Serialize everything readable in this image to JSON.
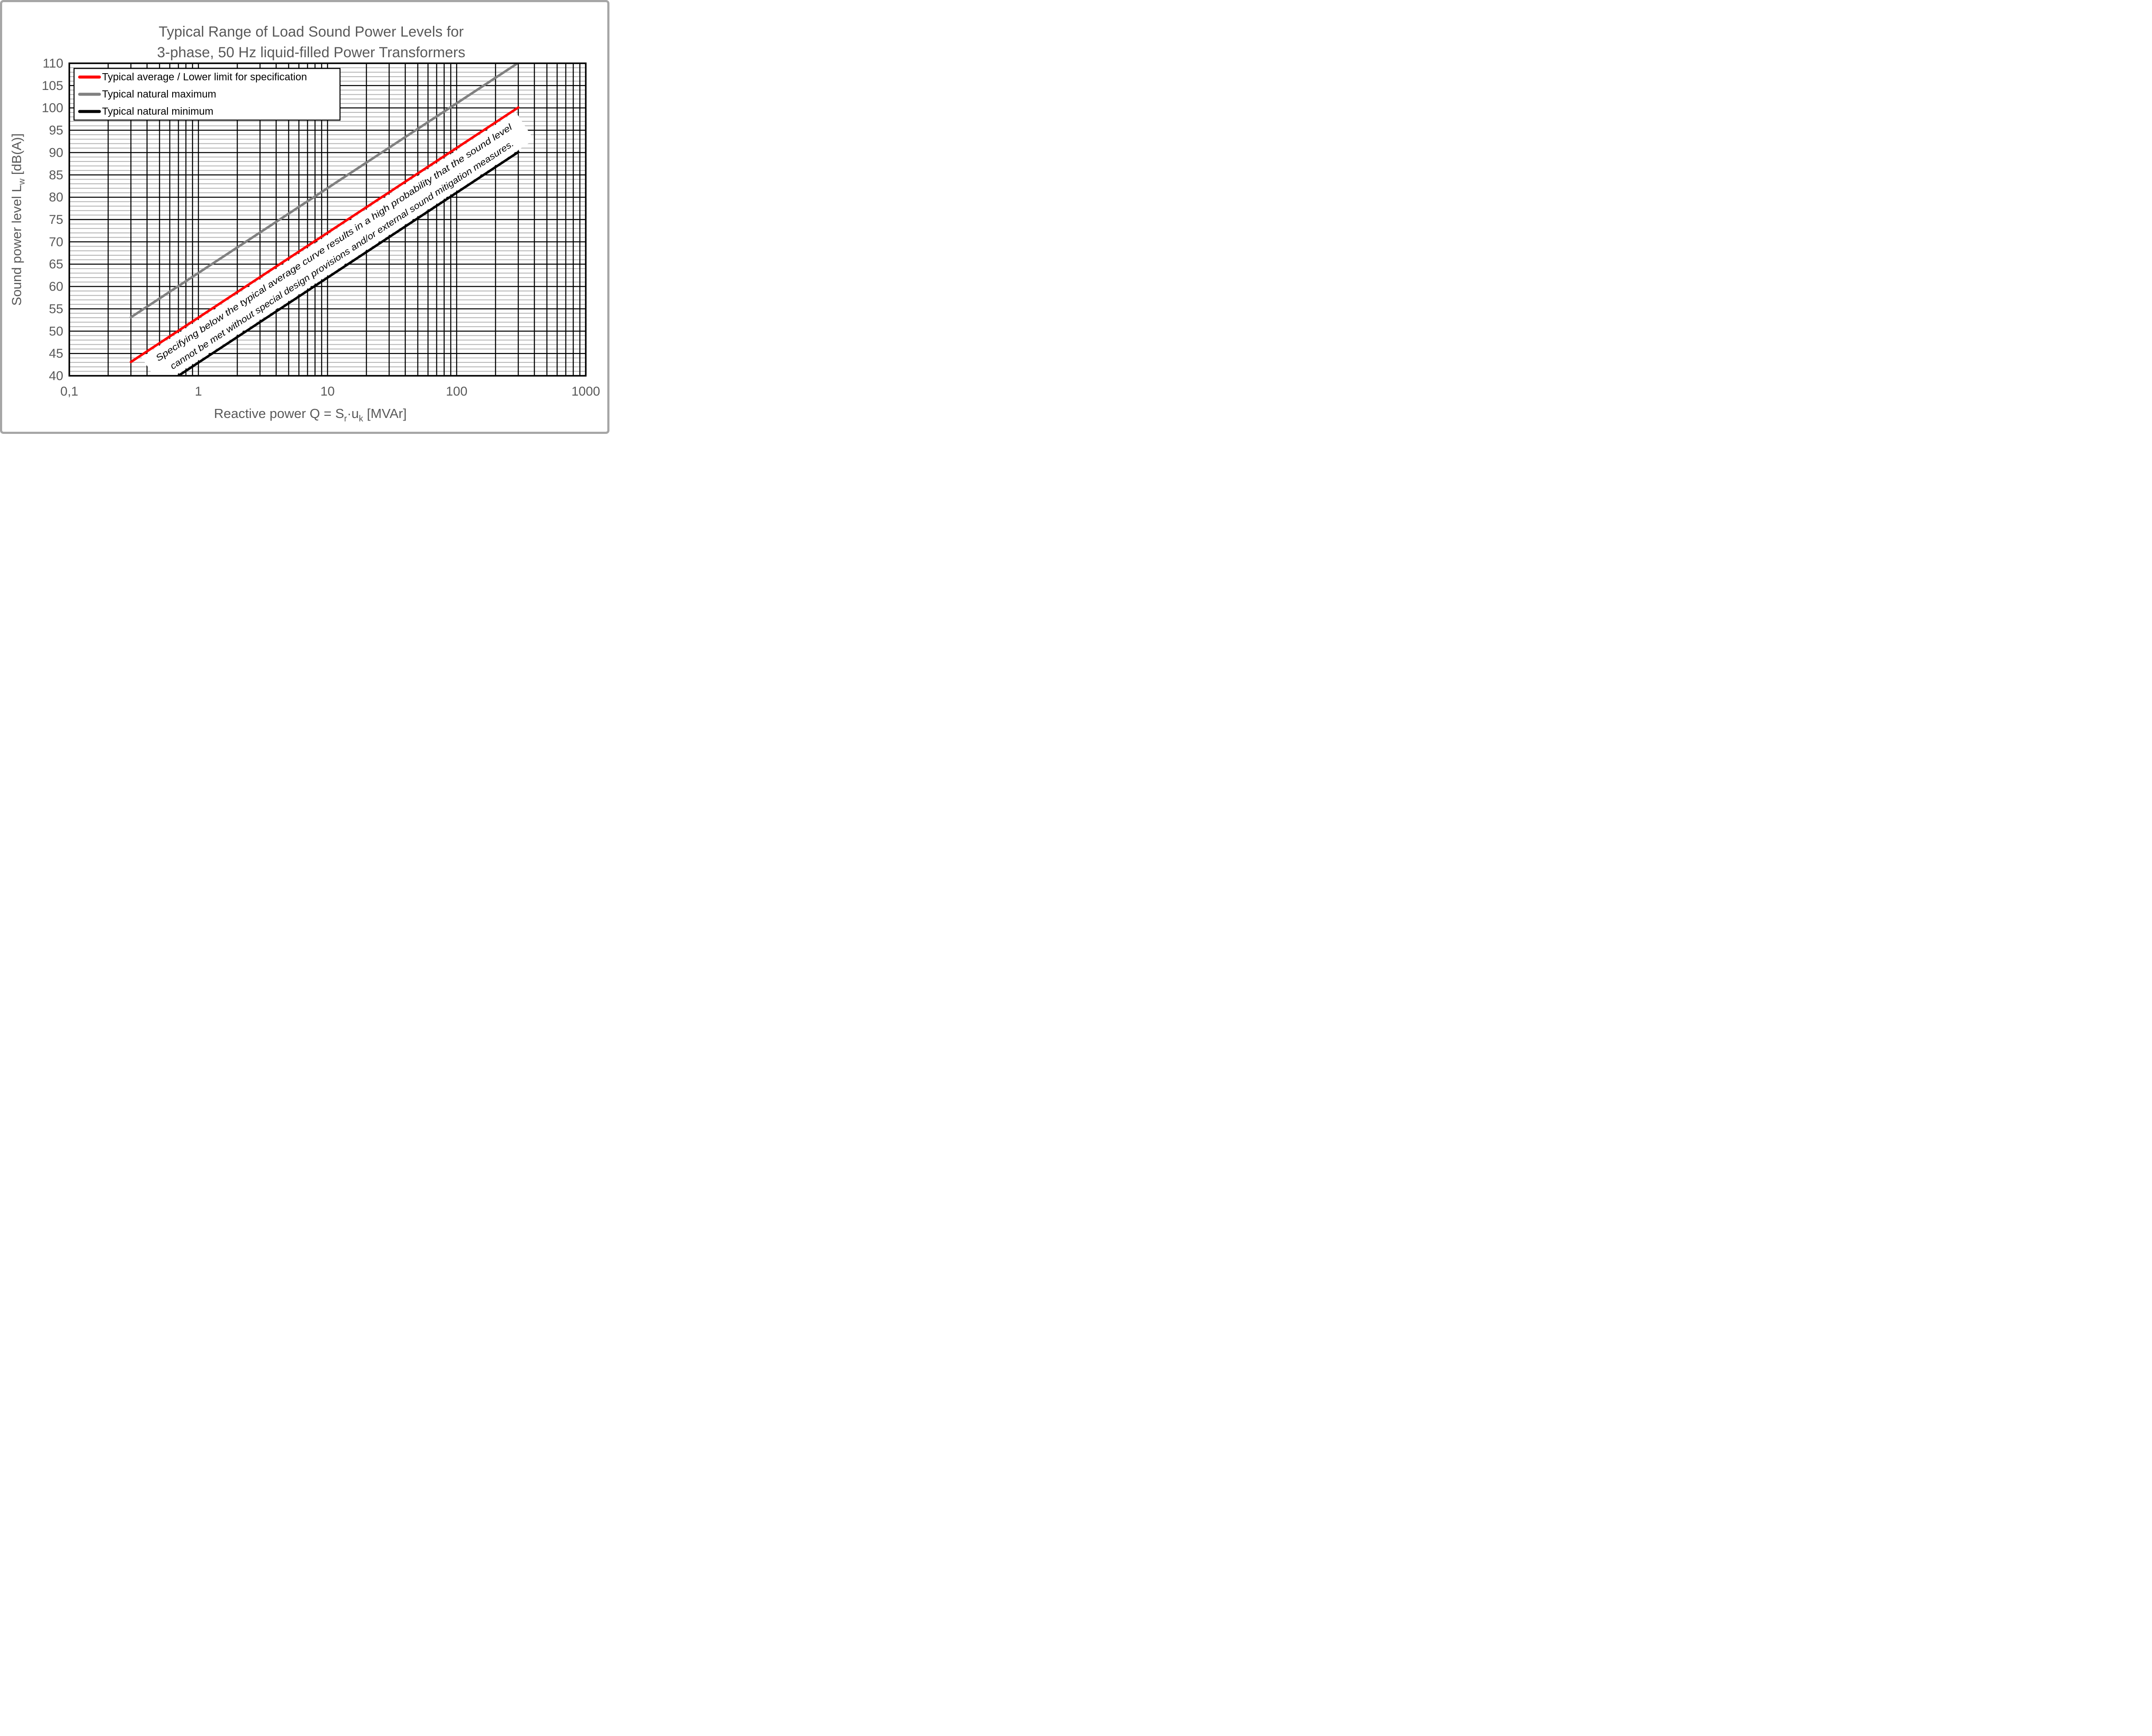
{
  "title": {
    "line1": "Typical Range of Load Sound Power Levels for",
    "line2": "3-phase, 50 Hz liquid-filled Power Transformers"
  },
  "colors": {
    "frame_border": "#A6A6A6",
    "plot_border": "#000000",
    "grid_vertical": "#000000",
    "grid_major_horizontal": "#000000",
    "grid_minor_horizontal": "#B3B3B3",
    "text": "#595959",
    "legend_text": "#000000",
    "annotation_text": "#000000",
    "series_red": "#FF0000",
    "series_gray": "#808080",
    "series_black": "#000000"
  },
  "chart_data": {
    "type": "line",
    "title": "Typical Range of Load Sound Power Levels for 3-phase, 50 Hz liquid-filled Power Transformers",
    "xlabel": "Reactive power Q = Sr·uk [MVAr]",
    "ylabel": "Sound power level Lw [dB(A)]",
    "x_axis": {
      "scale": "log",
      "min": 0.1,
      "max": 1000,
      "major_ticks": [
        0.1,
        1,
        10,
        100,
        1000
      ],
      "tick_labels": [
        "0,1",
        "1",
        "10",
        "100",
        "1000"
      ],
      "minor_multiples": [
        2,
        3,
        4,
        5,
        6,
        7,
        8,
        9
      ],
      "label_parts": [
        {
          "t": "Reactive power Q = S"
        },
        {
          "t": "r",
          "sub": true
        },
        {
          "t": "·u"
        },
        {
          "t": "k",
          "sub": true
        },
        {
          "t": " [MVAr]"
        }
      ]
    },
    "y_axis": {
      "scale": "linear",
      "min": 40,
      "max": 110,
      "major_step": 5,
      "minor_step": 1,
      "tick_labels": [
        "40",
        "45",
        "50",
        "55",
        "60",
        "65",
        "70",
        "75",
        "80",
        "85",
        "90",
        "95",
        "100",
        "105",
        "110"
      ],
      "label_parts": [
        {
          "t": "Sound power level L"
        },
        {
          "t": "w",
          "sub": true
        },
        {
          "t": " [dB(A)]"
        }
      ]
    },
    "grid": {
      "vertical": "log minor + decades, black",
      "horizontal_major": "every 5 dB, black",
      "horizontal_minor": "every 1 dB, light gray"
    },
    "slope_db_per_decade": 19,
    "series": [
      {
        "name": "Typical average / Lower limit for specification",
        "color": "#FF0000",
        "points": [
          [
            0.3,
            43.1
          ],
          [
            300,
            100.1
          ]
        ]
      },
      {
        "name": "Typical natural maximum",
        "color": "#808080",
        "points": [
          [
            0.3,
            53.1
          ],
          [
            300,
            110.1
          ]
        ]
      },
      {
        "name": "Typical natural minimum",
        "color": "#000000",
        "points": [
          [
            0.7,
            40.0
          ],
          [
            300,
            90.1
          ]
        ]
      }
    ],
    "legend": {
      "position": "top-left",
      "border": "black",
      "background": "white"
    },
    "annotation": {
      "line1": "Specifying below the typical average curve results in a high probability that the sound level",
      "line2": "cannot be met without special design provisions and/or external sound mitigation measures.",
      "style": "italic, rotated along curves, white background band"
    }
  }
}
